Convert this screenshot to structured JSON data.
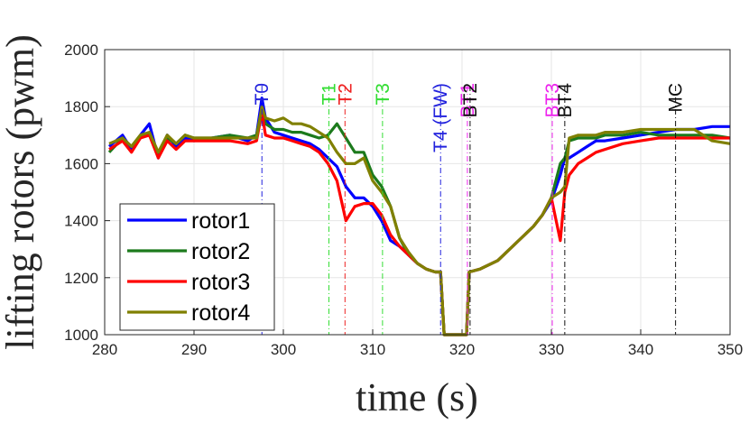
{
  "chart_data": {
    "type": "line",
    "xlabel": "time (s)",
    "ylabel": "lifting rotors (pwm)",
    "xlim": [
      280,
      350
    ],
    "ylim": [
      1000,
      2000
    ],
    "xticks": [
      280,
      290,
      300,
      310,
      320,
      330,
      340,
      350
    ],
    "yticks": [
      1000,
      1200,
      1400,
      1600,
      1800,
      2000
    ],
    "grid": true,
    "legend": "bottom-left",
    "events": [
      {
        "label": "T0",
        "x": 297.6,
        "color": "#2222dd"
      },
      {
        "label": "T1",
        "x": 305.1,
        "color": "#33dd33"
      },
      {
        "label": "T2",
        "x": 306.9,
        "color": "#ee2222"
      },
      {
        "label": "T3",
        "x": 311.1,
        "color": "#33dd33"
      },
      {
        "label": "T4 (FW)",
        "x": 317.6,
        "color": "#2222dd"
      },
      {
        "label": "BT1",
        "x": 320.6,
        "color": "#ee22ee"
      },
      {
        "label": "BT2",
        "x": 320.9,
        "color": "#111111"
      },
      {
        "label": "BT3",
        "x": 330.1,
        "color": "#ee22ee"
      },
      {
        "label": "BT4",
        "x": 331.5,
        "color": "#111111"
      },
      {
        "label": "MC",
        "x": 343.9,
        "color": "#111111"
      }
    ],
    "series": [
      {
        "name": "rotor1",
        "color": "#0000ff",
        "x": [
          280.5,
          282,
          283,
          284,
          285,
          286,
          287,
          288,
          289,
          290,
          292,
          294,
          296,
          297,
          297.6,
          298,
          299,
          300,
          301,
          302,
          303,
          304,
          305,
          306,
          307,
          308,
          309,
          310,
          311,
          312,
          313,
          314,
          315,
          316,
          317,
          317.6,
          318,
          320.5,
          320.8,
          322,
          324,
          326,
          328,
          329,
          330,
          331,
          331.5,
          332,
          333,
          334,
          335,
          336,
          338,
          340,
          342,
          344,
          346,
          348,
          350
        ],
        "y": [
          1660,
          1700,
          1650,
          1700,
          1740,
          1620,
          1700,
          1660,
          1690,
          1680,
          1690,
          1700,
          1680,
          1700,
          1830,
          1760,
          1710,
          1700,
          1690,
          1680,
          1670,
          1650,
          1620,
          1590,
          1520,
          1480,
          1480,
          1450,
          1400,
          1330,
          1310,
          1280,
          1250,
          1230,
          1220,
          1220,
          1000,
          1000,
          1220,
          1230,
          1260,
          1320,
          1380,
          1420,
          1470,
          1560,
          1620,
          1620,
          1640,
          1660,
          1680,
          1680,
          1690,
          1700,
          1710,
          1720,
          1720,
          1730,
          1730
        ]
      },
      {
        "name": "rotor2",
        "color": "#1c7a1c",
        "x": [
          280.5,
          282,
          283,
          284,
          285,
          286,
          287,
          288,
          289,
          290,
          292,
          294,
          296,
          297,
          297.6,
          298,
          299,
          300,
          301,
          302,
          303,
          304,
          305,
          306,
          307,
          308,
          309,
          310,
          311,
          312,
          313,
          314,
          315,
          316,
          317,
          317.6,
          318,
          320.5,
          320.8,
          322,
          324,
          326,
          328,
          329,
          330,
          331,
          331.5,
          332,
          333,
          334,
          335,
          336,
          338,
          340,
          342,
          344,
          346,
          348,
          350
        ],
        "y": [
          1640,
          1690,
          1660,
          1700,
          1700,
          1640,
          1690,
          1670,
          1700,
          1690,
          1690,
          1700,
          1690,
          1700,
          1790,
          1740,
          1720,
          1720,
          1710,
          1710,
          1700,
          1690,
          1700,
          1740,
          1690,
          1640,
          1640,
          1560,
          1520,
          1450,
          1340,
          1280,
          1250,
          1230,
          1220,
          1220,
          1000,
          1000,
          1220,
          1230,
          1260,
          1320,
          1380,
          1420,
          1480,
          1600,
          1620,
          1680,
          1690,
          1690,
          1690,
          1700,
          1700,
          1710,
          1700,
          1700,
          1700,
          1700,
          1690
        ]
      },
      {
        "name": "rotor3",
        "color": "#ff0000",
        "x": [
          280.5,
          282,
          283,
          284,
          285,
          286,
          287,
          288,
          289,
          290,
          292,
          294,
          296,
          297,
          297.6,
          298,
          299,
          300,
          301,
          302,
          303,
          304,
          305,
          306,
          307,
          308,
          309,
          310,
          311,
          312,
          313,
          314,
          315,
          316,
          317,
          317.6,
          318,
          320.5,
          320.8,
          322,
          324,
          326,
          328,
          329,
          330,
          331,
          331.5,
          332,
          333,
          334,
          335,
          336,
          338,
          340,
          342,
          344,
          346,
          348,
          350
        ],
        "y": [
          1650,
          1680,
          1640,
          1690,
          1700,
          1620,
          1680,
          1650,
          1680,
          1680,
          1680,
          1680,
          1670,
          1680,
          1780,
          1700,
          1690,
          1690,
          1680,
          1670,
          1660,
          1640,
          1600,
          1540,
          1400,
          1450,
          1460,
          1460,
          1420,
          1350,
          1310,
          1280,
          1250,
          1230,
          1220,
          1220,
          1000,
          1000,
          1220,
          1230,
          1260,
          1320,
          1380,
          1420,
          1480,
          1330,
          1500,
          1560,
          1600,
          1620,
          1640,
          1650,
          1670,
          1680,
          1690,
          1690,
          1690,
          1690,
          1690
        ]
      },
      {
        "name": "rotor4",
        "color": "#808000",
        "x": [
          280.5,
          282,
          283,
          284,
          285,
          286,
          287,
          288,
          289,
          290,
          292,
          294,
          296,
          297,
          297.6,
          298,
          299,
          300,
          301,
          302,
          303,
          304,
          305,
          306,
          307,
          308,
          309,
          310,
          311,
          312,
          313,
          314,
          315,
          316,
          317,
          317.6,
          318,
          320.5,
          320.8,
          322,
          324,
          326,
          328,
          329,
          330,
          331,
          331.5,
          332,
          333,
          334,
          335,
          336,
          338,
          340,
          342,
          344,
          346,
          348,
          350
        ],
        "y": [
          1670,
          1690,
          1660,
          1700,
          1710,
          1640,
          1700,
          1670,
          1700,
          1690,
          1690,
          1690,
          1690,
          1690,
          1800,
          1760,
          1750,
          1760,
          1740,
          1740,
          1730,
          1710,
          1690,
          1640,
          1600,
          1600,
          1620,
          1540,
          1500,
          1450,
          1340,
          1290,
          1250,
          1230,
          1220,
          1220,
          1000,
          1000,
          1220,
          1230,
          1260,
          1320,
          1380,
          1420,
          1480,
          1500,
          1520,
          1690,
          1700,
          1700,
          1700,
          1710,
          1710,
          1720,
          1720,
          1720,
          1720,
          1680,
          1670
        ]
      }
    ]
  }
}
